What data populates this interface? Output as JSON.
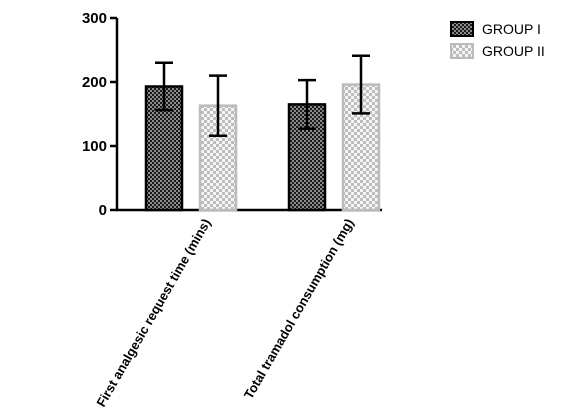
{
  "chart_data": {
    "type": "bar",
    "title": "",
    "xlabel": "",
    "ylabel": "",
    "ylim": [
      0,
      300
    ],
    "yticks": [
      0,
      100,
      200,
      300
    ],
    "grid": false,
    "legend_position": "top-right",
    "categories": [
      "First analgesic request time (mins)",
      "Total tramadol consumption (mg)"
    ],
    "series": [
      {
        "name": "GROUP I",
        "values": [
          193,
          165
        ],
        "error": [
          37,
          38
        ],
        "pattern": "dark-checker",
        "color": "#333333"
      },
      {
        "name": "GROUP II",
        "values": [
          163,
          196
        ],
        "error": [
          47,
          45
        ],
        "pattern": "light-checker",
        "color": "#c8c8c8"
      }
    ]
  }
}
